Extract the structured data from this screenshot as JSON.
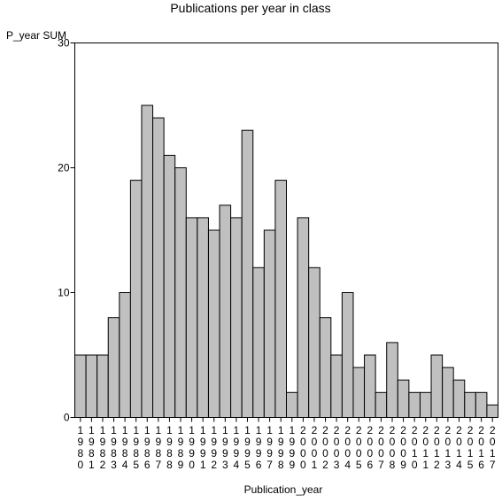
{
  "chart_data": {
    "type": "bar",
    "title": "Publications per year in class",
    "xlabel": "Publication_year",
    "ylabel": "P_year SUM",
    "ylim": [
      0,
      30
    ],
    "yticks": [
      0,
      10,
      20,
      30
    ],
    "grid": false,
    "legend": "none",
    "categories": [
      "1980",
      "1981",
      "1982",
      "1983",
      "1984",
      "1985",
      "1986",
      "1987",
      "1988",
      "1989",
      "1990",
      "1991",
      "1992",
      "1993",
      "1994",
      "1995",
      "1996",
      "1997",
      "1998",
      "1999",
      "2000",
      "2001",
      "2002",
      "2003",
      "2004",
      "2005",
      "2006",
      "2007",
      "2008",
      "2009",
      "2010",
      "2011",
      "2012",
      "2013",
      "2014",
      "2015",
      "2016",
      "2017"
    ],
    "values": [
      5,
      5,
      5,
      8,
      10,
      19,
      25,
      24,
      21,
      20,
      16,
      16,
      15,
      17,
      16,
      23,
      12,
      15,
      19,
      2,
      16,
      12,
      8,
      5,
      10,
      4,
      5,
      2,
      6,
      3,
      2,
      2,
      5,
      4,
      3,
      2,
      2,
      1
    ],
    "colors": {
      "bar_fill": "#c0c0c0",
      "bar_stroke": "#000000",
      "frame": "#000000",
      "background": "#ffffff"
    }
  }
}
